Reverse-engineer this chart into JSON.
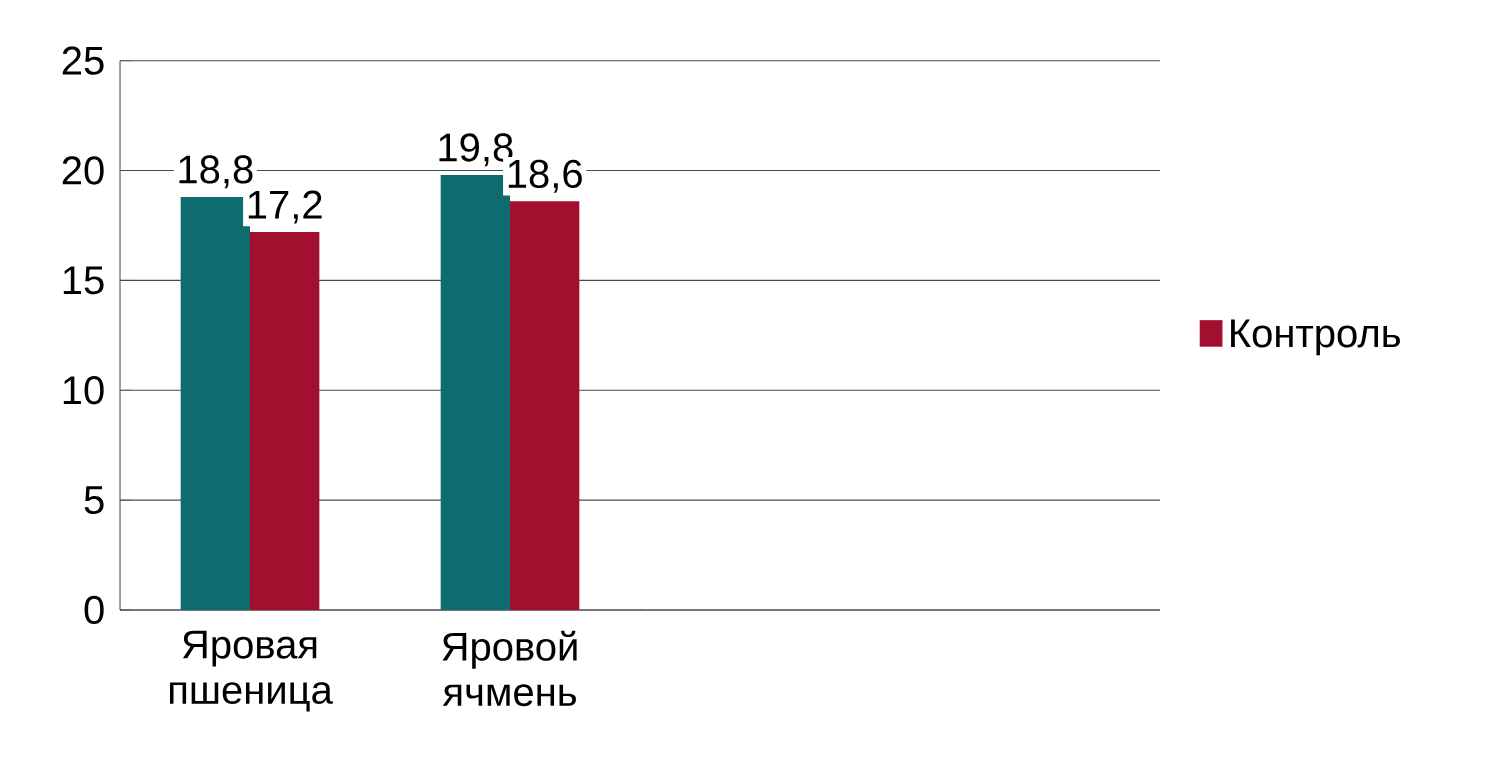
{
  "chart_data": {
    "type": "bar",
    "categories": [
      "Яровая пшеница",
      "Яровой ячмень",
      null,
      null
    ],
    "series": [
      {
        "color": "#0e6b6e",
        "values": [
          18.8,
          19.8,
          null,
          null
        ],
        "value_labels": [
          "18,8",
          "19,8",
          null,
          null
        ]
      },
      {
        "name": "Контроль",
        "color": "#a3102f",
        "values": [
          17.2,
          18.6,
          null,
          null
        ],
        "value_labels": [
          "17,2",
          "18,6",
          null,
          null
        ]
      }
    ],
    "ylim": [
      0,
      25
    ],
    "yticks": [
      0,
      5,
      10,
      15,
      20,
      25
    ],
    "grid": "y",
    "legend": "right"
  }
}
